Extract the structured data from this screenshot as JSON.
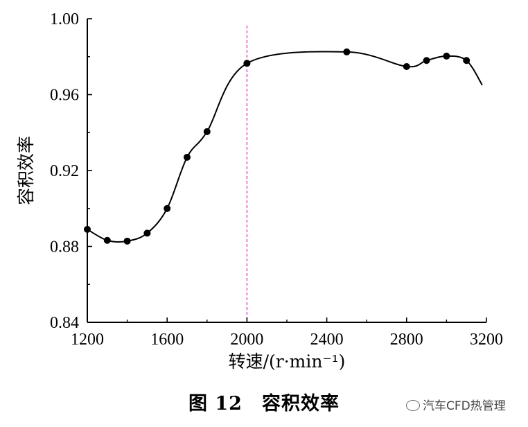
{
  "chart_data": {
    "type": "line",
    "title": "",
    "xlabel": "转速/(r·min⁻¹)",
    "ylabel": "容积效率",
    "xlim": [
      1200,
      3200
    ],
    "ylim": [
      0.84,
      1.0
    ],
    "xticks": [
      1200,
      1600,
      2000,
      2400,
      2800,
      3200
    ],
    "yticks": [
      0.84,
      0.88,
      0.92,
      0.96,
      1.0
    ],
    "xtick_labels": [
      "1200",
      "1600",
      "2000",
      "2400",
      "2800",
      "3200"
    ],
    "ytick_labels": [
      "0.84",
      "0.88",
      "0.92",
      "0.96",
      "1.00"
    ],
    "grid": false,
    "series": [
      {
        "x": [
          1200,
          1300,
          1400,
          1500,
          1600,
          1700,
          1800,
          2000,
          2500,
          2800,
          2900,
          3000,
          3100
        ],
        "y": [
          0.889,
          0.8832,
          0.8828,
          0.887,
          0.9,
          0.927,
          0.9405,
          0.9765,
          0.9825,
          0.9748,
          0.978,
          0.9803,
          0.978
        ]
      }
    ],
    "curve_tail": {
      "x": 3200,
      "y": 0.965
    },
    "reference_line": {
      "x": 2000,
      "color": "#e040c0"
    }
  },
  "caption": "图 12　容积效率",
  "watermark": "汽车CFD热管理"
}
